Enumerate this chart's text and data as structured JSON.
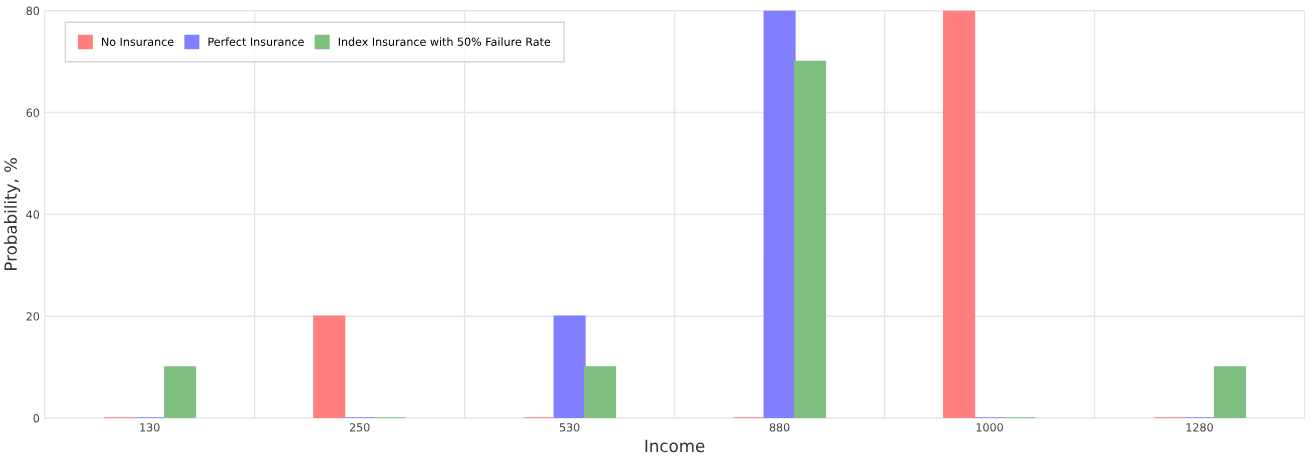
{
  "chart_data": {
    "type": "bar",
    "xlabel": "Income",
    "ylabel": "Probability, %",
    "categories": [
      "130",
      "250",
      "530",
      "880",
      "1000",
      "1280"
    ],
    "series": [
      {
        "name": "No Insurance",
        "color": "#ff7f7f",
        "values": [
          0,
          20,
          0,
          0,
          80,
          0
        ]
      },
      {
        "name": "Perfect Insurance",
        "color": "#7f7fff",
        "values": [
          0,
          0,
          20,
          80,
          0,
          0
        ]
      },
      {
        "name": "Index Insurance with 50% Failure Rate",
        "color": "#7fbf7f",
        "values": [
          10,
          0,
          10,
          70,
          0,
          10
        ]
      }
    ],
    "ylim": [
      0,
      80
    ],
    "yticks": [
      0,
      20,
      40,
      60,
      80
    ],
    "grid": true,
    "legend": "top left"
  }
}
